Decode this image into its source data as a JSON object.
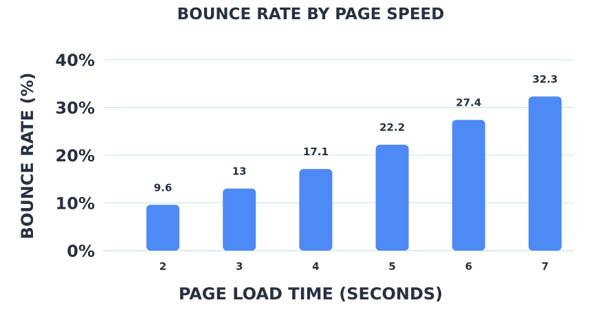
{
  "chart_data": {
    "type": "bar",
    "title": "BOUNCE RATE BY PAGE SPEED",
    "xlabel": "PAGE LOAD TIME (SECONDS)",
    "ylabel": "BOUNCE RATE (%)",
    "categories": [
      "2",
      "3",
      "4",
      "5",
      "6",
      "7"
    ],
    "values": [
      9.6,
      13,
      17.1,
      22.2,
      27.4,
      32.3
    ],
    "data_labels": [
      "9.6",
      "13",
      "17.1",
      "22.2",
      "27.4",
      "32.3"
    ],
    "yticks": [
      0,
      10,
      20,
      30,
      40
    ],
    "ytick_labels": [
      "0%",
      "10%",
      "20%",
      "30%",
      "40%"
    ],
    "ylim": [
      0,
      40
    ],
    "grid": true,
    "bar_color": "#4d8af5",
    "text_color": "#273142",
    "grid_color": "#bfe3f2"
  }
}
